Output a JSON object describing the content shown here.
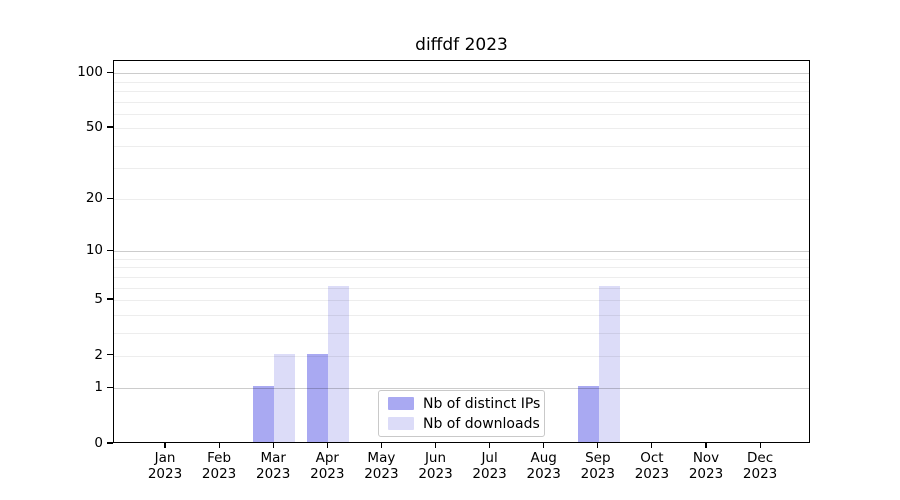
{
  "figure": {
    "title": "diffdf 2023",
    "background": "#ffffff"
  },
  "chart_data": {
    "type": "bar",
    "title": "diffdf 2023",
    "xlabel": "",
    "ylabel": "",
    "yscale": "symlog (log1p)",
    "ylim": [
      0,
      115
    ],
    "y_ticks": [
      0,
      1,
      2,
      5,
      10,
      20,
      50,
      100
    ],
    "y_minor_gridlines": [
      2,
      3,
      4,
      5,
      6,
      7,
      8,
      9,
      20,
      30,
      40,
      50,
      60,
      70,
      80,
      90
    ],
    "y_major_gridlines": [
      1,
      10,
      100
    ],
    "grid": "horizontal, minor+major, drawn over bars",
    "legend_position": "inside bottom-center",
    "categories": [
      {
        "month": "Jan",
        "year": "2023"
      },
      {
        "month": "Feb",
        "year": "2023"
      },
      {
        "month": "Mar",
        "year": "2023"
      },
      {
        "month": "Apr",
        "year": "2023"
      },
      {
        "month": "May",
        "year": "2023"
      },
      {
        "month": "Jun",
        "year": "2023"
      },
      {
        "month": "Jul",
        "year": "2023"
      },
      {
        "month": "Aug",
        "year": "2023"
      },
      {
        "month": "Sep",
        "year": "2023"
      },
      {
        "month": "Oct",
        "year": "2023"
      },
      {
        "month": "Nov",
        "year": "2023"
      },
      {
        "month": "Dec",
        "year": "2023"
      }
    ],
    "series": [
      {
        "name": "Nb of distinct IPs",
        "color": "#a9a9f2",
        "values": [
          0,
          0,
          1,
          2,
          0,
          0,
          0,
          0,
          1,
          0,
          0,
          0
        ]
      },
      {
        "name": "Nb of downloads",
        "color": "#dcdcf8",
        "values": [
          0,
          0,
          2,
          6,
          0,
          0,
          0,
          0,
          6,
          0,
          0,
          0
        ]
      }
    ]
  },
  "colors": {
    "axis": "#000000",
    "text": "#000000",
    "major_grid": "#cccccc",
    "minor_grid": "#ededed",
    "legend_border": "#c9c9c9"
  }
}
